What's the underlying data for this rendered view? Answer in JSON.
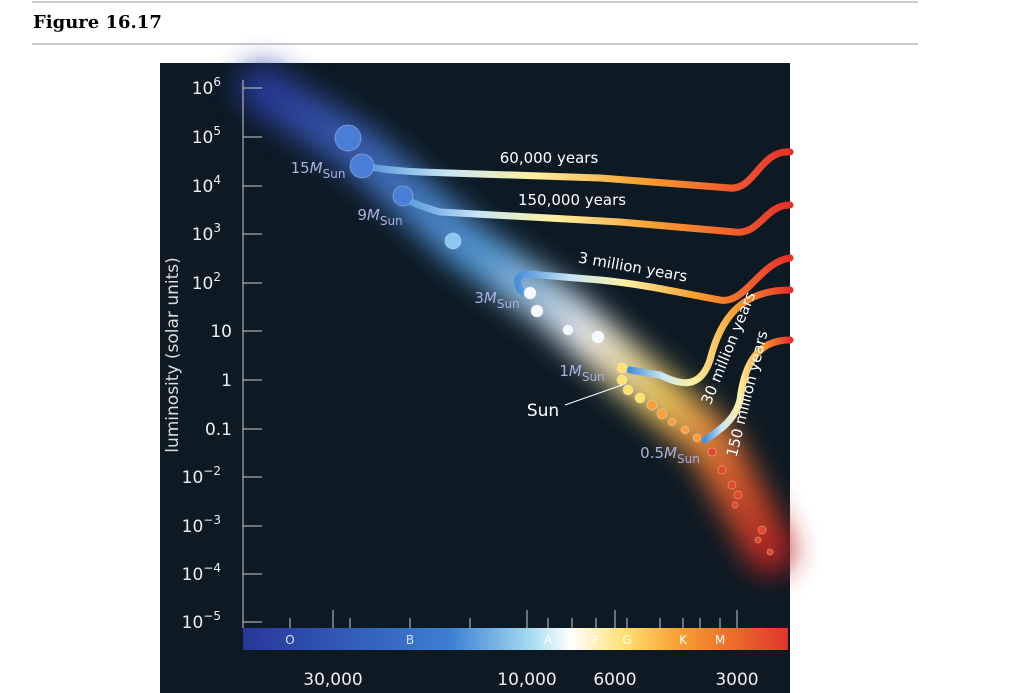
{
  "header": {
    "title": "Figure 16.17"
  },
  "figure": {
    "y_axis_label": "luminosity (solar units)",
    "yticks": [
      {
        "text": "10",
        "sup": "6"
      },
      {
        "text": "10",
        "sup": "5"
      },
      {
        "text": "10",
        "sup": "4"
      },
      {
        "text": "10",
        "sup": "3"
      },
      {
        "text": "10",
        "sup": "2"
      },
      {
        "text": "10"
      },
      {
        "text": "1"
      },
      {
        "text": "0.1"
      },
      {
        "text": "10",
        "sup": "−2"
      },
      {
        "text": "10",
        "sup": "−3"
      },
      {
        "text": "10",
        "sup": "−4"
      },
      {
        "text": "10",
        "sup": "−5"
      }
    ],
    "xticks": [
      "30,000",
      "10,000",
      "6000",
      "3000"
    ],
    "spectral_classes": [
      "O",
      "B",
      "A",
      "F",
      "G",
      "K",
      "M"
    ],
    "tracks": [
      "60,000 years",
      "150,000 years",
      "3 million years",
      "30 million years",
      "150 million years"
    ],
    "masses": [
      {
        "number": "15",
        "symbol": "M",
        "subscript": "Sun"
      },
      {
        "number": "9",
        "symbol": "M",
        "subscript": "Sun"
      },
      {
        "number": "3",
        "symbol": "M",
        "subscript": "Sun"
      },
      {
        "number": "1",
        "symbol": "M",
        "subscript": "Sun"
      },
      {
        "number": "0.5",
        "symbol": "M",
        "subscript": "Sun"
      }
    ],
    "sun_label": "Sun"
  }
}
